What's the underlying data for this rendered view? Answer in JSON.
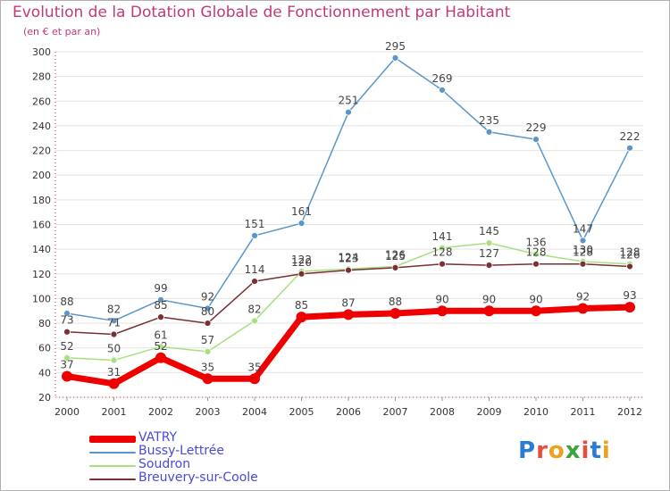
{
  "title": "Evolution de la Dotation Globale de Fonctionnement par Habitant",
  "subtitle": "(en € et par an)",
  "logo": {
    "text": "Proxiti",
    "colors": [
      "#2b7bd3",
      "#e84c3d",
      "#f0a020",
      "#3aa53a",
      "#e84c3d",
      "#2b7bd3",
      "#f0a020"
    ]
  },
  "chart_data": {
    "type": "line",
    "title": "Evolution de la Dotation Globale de Fonctionnement par Habitant",
    "subtitle": "(en € et par an)",
    "xlabel": "",
    "ylabel": "",
    "categories": [
      "2000",
      "2001",
      "2002",
      "2003",
      "2004",
      "2005",
      "2006",
      "2007",
      "2008",
      "2009",
      "2010",
      "2011",
      "2012"
    ],
    "yticks": [
      20,
      40,
      60,
      80,
      100,
      120,
      140,
      160,
      180,
      200,
      220,
      240,
      260,
      280,
      300
    ],
    "ylim": [
      20,
      300
    ],
    "grid": "horizontal",
    "legend_position": "bottom-left",
    "series": [
      {
        "name": "VATRY",
        "color": "#ee0000",
        "values": [
          37,
          31,
          52,
          35,
          35,
          85,
          87,
          88,
          90,
          90,
          90,
          92,
          93
        ],
        "labels": [
          "37",
          "31",
          "52",
          "35",
          "35",
          "85",
          "87",
          "88",
          "90",
          "90",
          "90",
          "92",
          "93"
        ]
      },
      {
        "name": "Bussy-Lettrée",
        "color": "#5a96c8",
        "values": [
          88,
          82,
          99,
          92,
          151,
          161,
          251,
          295,
          269,
          235,
          229,
          147,
          222
        ],
        "labels": [
          "88",
          "82",
          "99",
          "92",
          "151",
          "161",
          "251",
          "295",
          "269",
          "235",
          "229",
          "147",
          "222"
        ]
      },
      {
        "name": "Soudron",
        "color": "#a8e080",
        "values": [
          52,
          50,
          61,
          57,
          82,
          122,
          124,
          126,
          141,
          145,
          136,
          130,
          128
        ],
        "labels": [
          "52",
          "50",
          "61",
          "57",
          "82",
          "122",
          "124",
          "126",
          "141",
          "145",
          "136",
          "130",
          "128"
        ]
      },
      {
        "name": "Breuvery-sur-Coole",
        "color": "#7a2f32",
        "values": [
          73,
          71,
          85,
          80,
          114,
          120,
          123,
          125,
          128,
          127,
          128,
          128,
          126
        ],
        "labels": [
          "73",
          "71",
          "85",
          "80",
          "114",
          "120",
          "123",
          "125",
          "128",
          "127",
          "128",
          "128",
          "126"
        ]
      }
    ]
  }
}
